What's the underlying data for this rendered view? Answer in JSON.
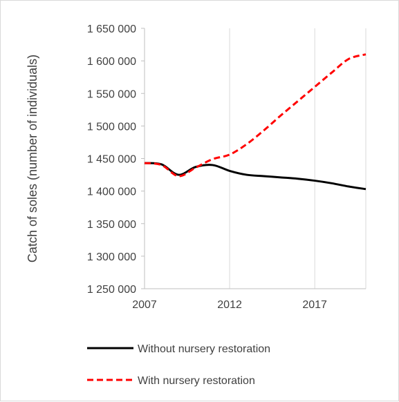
{
  "chart_data": {
    "type": "line",
    "title": "",
    "xlabel": "",
    "ylabel": "Catch of soles (number of individuals)",
    "xlim": [
      2007,
      2020
    ],
    "ylim": [
      1250000,
      1650000
    ],
    "x_ticks": [
      2007,
      2012,
      2017
    ],
    "x_tick_labels": [
      "2007",
      "2012",
      "2017"
    ],
    "y_ticks": [
      1250000,
      1300000,
      1350000,
      1400000,
      1450000,
      1500000,
      1550000,
      1600000,
      1650000
    ],
    "y_tick_labels": [
      "1 250 000",
      "1 300 000",
      "1 350 000",
      "1 400 000",
      "1 450 000",
      "1 500 000",
      "1 550 000",
      "1 600 000",
      "1 650 000"
    ],
    "grid": "vertical",
    "legend_position": "bottom",
    "x": [
      2007,
      2008,
      2009,
      2010,
      2011,
      2012,
      2013,
      2014,
      2015,
      2016,
      2017,
      2018,
      2019,
      2020
    ],
    "series": [
      {
        "name": "Without nursery restoration",
        "color": "#000000",
        "dash": "solid",
        "values": [
          1443000,
          1441000,
          1425000,
          1437000,
          1440000,
          1431000,
          1425000,
          1423000,
          1421000,
          1419000,
          1416000,
          1412000,
          1407000,
          1403000
        ]
      },
      {
        "name": "With nursery restoration",
        "color": "#ff0000",
        "dash": "dashed",
        "values": [
          1443000,
          1440000,
          1423000,
          1436000,
          1449000,
          1456000,
          1472000,
          1493000,
          1516000,
          1538000,
          1560000,
          1582000,
          1603000,
          1610000
        ]
      }
    ]
  }
}
